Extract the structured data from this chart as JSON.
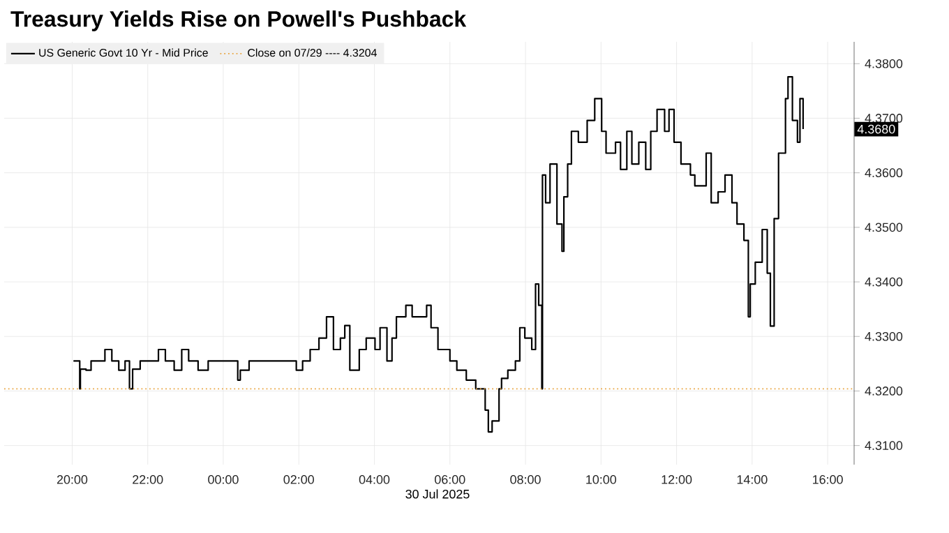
{
  "chart_data": {
    "type": "step",
    "title": "Treasury Yields Rise on Powell's Pushback",
    "xlabel": "30 Jul 2025",
    "series": [
      {
        "name": "US Generic Govt 10 Yr - Mid Price",
        "color": "#000000",
        "x": [
          "2025-07-29T20:02",
          "2025-07-29T20:12",
          "2025-07-29T20:13",
          "2025-07-29T20:22",
          "2025-07-29T20:30",
          "2025-07-29T20:52",
          "2025-07-29T21:03",
          "2025-07-29T21:14",
          "2025-07-29T21:24",
          "2025-07-29T21:31",
          "2025-07-29T21:36",
          "2025-07-29T21:48",
          "2025-07-29T22:17",
          "2025-07-29T22:28",
          "2025-07-29T22:42",
          "2025-07-29T22:54",
          "2025-07-29T23:05",
          "2025-07-29T23:20",
          "2025-07-29T23:36",
          "2025-07-30T00:23",
          "2025-07-30T00:27",
          "2025-07-30T00:41",
          "2025-07-30T01:56",
          "2025-07-30T02:06",
          "2025-07-30T02:18",
          "2025-07-30T02:32",
          "2025-07-30T02:44",
          "2025-07-30T02:55",
          "2025-07-30T03:06",
          "2025-07-30T03:13",
          "2025-07-30T03:21",
          "2025-07-30T03:36",
          "2025-07-30T03:47",
          "2025-07-30T04:01",
          "2025-07-30T04:09",
          "2025-07-30T04:20",
          "2025-07-30T04:28",
          "2025-07-30T04:35",
          "2025-07-30T04:50",
          "2025-07-30T05:00",
          "2025-07-30T05:23",
          "2025-07-30T05:30",
          "2025-07-30T05:41",
          "2025-07-30T06:00",
          "2025-07-30T06:11",
          "2025-07-30T06:26",
          "2025-07-30T06:41",
          "2025-07-30T06:56",
          "2025-07-30T07:01",
          "2025-07-30T07:07",
          "2025-07-30T07:18",
          "2025-07-30T07:22",
          "2025-07-30T07:32",
          "2025-07-30T07:44",
          "2025-07-30T07:51",
          "2025-07-30T07:59",
          "2025-07-30T08:10",
          "2025-07-30T08:16",
          "2025-07-30T08:21",
          "2025-07-30T08:26",
          "2025-07-30T08:27",
          "2025-07-30T08:32",
          "2025-07-30T08:39",
          "2025-07-30T08:50",
          "2025-07-30T08:58",
          "2025-07-30T09:01",
          "2025-07-30T09:07",
          "2025-07-30T09:13",
          "2025-07-30T09:24",
          "2025-07-30T09:38",
          "2025-07-30T09:50",
          "2025-07-30T10:01",
          "2025-07-30T10:08",
          "2025-07-30T10:23",
          "2025-07-30T10:31",
          "2025-07-30T10:41",
          "2025-07-30T10:49",
          "2025-07-30T11:00",
          "2025-07-30T11:11",
          "2025-07-30T11:19",
          "2025-07-30T11:29",
          "2025-07-30T11:41",
          "2025-07-30T11:48",
          "2025-07-30T11:56",
          "2025-07-30T12:07",
          "2025-07-30T12:22",
          "2025-07-30T12:29",
          "2025-07-30T12:47",
          "2025-07-30T12:55",
          "2025-07-30T13:06",
          "2025-07-30T13:17",
          "2025-07-30T13:28",
          "2025-07-30T13:36",
          "2025-07-30T13:47",
          "2025-07-30T13:54",
          "2025-07-30T13:57",
          "2025-07-30T14:05",
          "2025-07-30T14:16",
          "2025-07-30T14:24",
          "2025-07-30T14:29",
          "2025-07-30T14:35",
          "2025-07-30T14:42",
          "2025-07-30T14:53",
          "2025-07-30T14:57",
          "2025-07-30T15:04",
          "2025-07-30T15:12",
          "2025-07-30T15:16",
          "2025-07-30T15:21"
        ],
        "values": [
          4.3255,
          4.3204,
          4.324,
          4.3238,
          4.3255,
          4.3276,
          4.3255,
          4.3238,
          4.3255,
          4.3204,
          4.324,
          4.3255,
          4.3276,
          4.3255,
          4.3238,
          4.3276,
          4.3255,
          4.3238,
          4.3255,
          4.322,
          4.3238,
          4.3255,
          4.3238,
          4.3255,
          4.3276,
          4.3297,
          4.3336,
          4.3276,
          4.3297,
          4.332,
          4.3238,
          4.3276,
          4.3297,
          4.3276,
          4.3316,
          4.3255,
          4.3297,
          4.3336,
          4.3357,
          4.3336,
          4.3357,
          4.3316,
          4.3276,
          4.3255,
          4.3238,
          4.322,
          4.3204,
          4.3165,
          4.3125,
          4.3145,
          4.3204,
          4.3223,
          4.3238,
          4.3255,
          4.3316,
          4.3297,
          4.3276,
          4.3396,
          4.3357,
          4.3204,
          4.3596,
          4.3545,
          4.3616,
          4.3506,
          4.3456,
          4.3556,
          4.3616,
          4.3676,
          4.3656,
          4.3696,
          4.3736,
          4.3676,
          4.3636,
          4.3656,
          4.3606,
          4.3676,
          4.3616,
          4.3656,
          4.3606,
          4.3676,
          4.3716,
          4.3676,
          4.3716,
          4.3656,
          4.3616,
          4.3596,
          4.3576,
          4.3636,
          4.3545,
          4.3565,
          4.3596,
          4.3545,
          4.3506,
          4.3476,
          4.3336,
          4.3396,
          4.3436,
          4.3496,
          4.3416,
          4.3319,
          4.3516,
          4.3636,
          4.3736,
          4.3776,
          4.3696,
          4.3656,
          4.3736,
          4.368
        ]
      }
    ],
    "ref_lines": [
      {
        "axis": "y",
        "value": 4.3204,
        "label": "Close on 07/29 ---- 4.3204",
        "color": "#e8a33d",
        "line_style": "dotted"
      }
    ],
    "annotations": [
      "4.3680"
    ],
    "xlim": [
      "2025-07-29T18:12",
      "2025-07-30T16:42"
    ],
    "ylim": [
      4.3065,
      4.384
    ],
    "xticks": [
      {
        "value": "2025-07-29T20:00",
        "label": "20:00"
      },
      {
        "value": "2025-07-29T22:00",
        "label": "22:00"
      },
      {
        "value": "2025-07-30T00:00",
        "label": "00:00"
      },
      {
        "value": "2025-07-30T02:00",
        "label": "02:00"
      },
      {
        "value": "2025-07-30T04:00",
        "label": "04:00"
      },
      {
        "value": "2025-07-30T06:00",
        "label": "06:00"
      },
      {
        "value": "2025-07-30T08:00",
        "label": "08:00"
      },
      {
        "value": "2025-07-30T10:00",
        "label": "10:00"
      },
      {
        "value": "2025-07-30T12:00",
        "label": "12:00"
      },
      {
        "value": "2025-07-30T14:00",
        "label": "14:00"
      },
      {
        "value": "2025-07-30T16:00",
        "label": "16:00"
      }
    ],
    "yticks": [
      {
        "value": 4.31,
        "label": "4.3100"
      },
      {
        "value": 4.32,
        "label": "4.3200"
      },
      {
        "value": 4.33,
        "label": "4.3300"
      },
      {
        "value": 4.34,
        "label": "4.3400"
      },
      {
        "value": 4.35,
        "label": "4.3500"
      },
      {
        "value": 4.36,
        "label": "4.3600"
      },
      {
        "value": 4.37,
        "label": "4.3700"
      },
      {
        "value": 4.38,
        "label": "4.3800"
      }
    ],
    "grid": true,
    "legend": "top left",
    "marker": "none",
    "line_style": "solid"
  }
}
